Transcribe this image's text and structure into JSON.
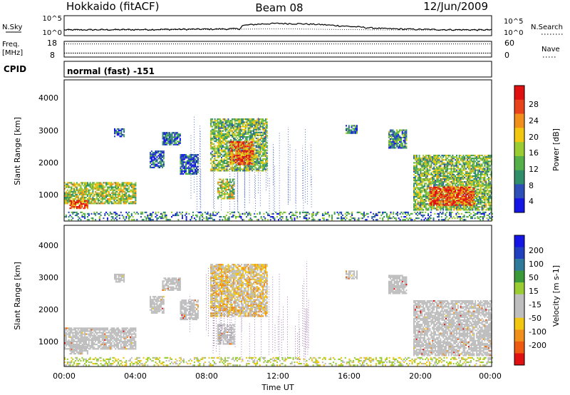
{
  "header": {
    "station": "Hokkaido (fitACF)",
    "beam": "Beam 08",
    "date": "12/Jun/2009"
  },
  "strip_labels": {
    "nsky": "N.Sky",
    "nsearch": "N.Search",
    "freq_line1": "Freq.",
    "freq_line2": "[MHz]",
    "nave": "Nave",
    "cpid": "CPID",
    "cpid_value": "normal (fast) -151"
  },
  "noise_axis": {
    "left_ticks": [
      "10^5",
      "10^0"
    ],
    "right_ticks": [
      "10^5",
      "10^0"
    ]
  },
  "freq_axis": {
    "left_ticks": [
      "18",
      "8"
    ],
    "right_ticks": [
      "60",
      "0"
    ]
  },
  "time_axis": {
    "label": "Time UT",
    "ticks": [
      "00:00",
      "04:00",
      "08:00",
      "12:00",
      "16:00",
      "20:00",
      "00:00"
    ]
  },
  "colors": {
    "power_scale": [
      "#1515e6",
      "#2e4fb8",
      "#2f8f6a",
      "#55b04a",
      "#9acd32",
      "#f2c70f",
      "#f0901a",
      "#e8431a",
      "#e01010"
    ],
    "velocity_scale": [
      "#e01010",
      "#ee5a10",
      "#f0901a",
      "#f2c70f",
      "#bebebe",
      "#bebebe",
      "#9acd32",
      "#3a9a3a",
      "#2e7a9a",
      "#2040c0",
      "#1515e6"
    ],
    "ground_scatter": "#bebebe"
  },
  "chart_data": [
    {
      "type": "line",
      "title": "N.Sky / N.Search",
      "ylabel_left": "N.Sky",
      "ylabel_right": "N.Search",
      "y_scale": "log",
      "ylim": [
        1,
        100000
      ],
      "x_hours": [
        0,
        2,
        4,
        6,
        7,
        8,
        9,
        9.9,
        10,
        11,
        12,
        13,
        14,
        15,
        16,
        17,
        18,
        20,
        22,
        24
      ],
      "series": [
        {
          "name": "N.Sky",
          "values": [
            18,
            20,
            22,
            26,
            28,
            30,
            34,
            40,
            300,
            900,
            1400,
            1200,
            800,
            400,
            180,
            80,
            40,
            25,
            20,
            18
          ]
        },
        {
          "name": "N.Search",
          "values": [
            16,
            17,
            18,
            20,
            22,
            24,
            26,
            28,
            30,
            34,
            36,
            34,
            30,
            26,
            22,
            20,
            18,
            17,
            16,
            16
          ]
        }
      ]
    },
    {
      "type": "line",
      "title": "Freq. / Nave",
      "ylabel_left": "Freq. [MHz]",
      "ylabel_right": "Nave",
      "ylim_left": [
        8,
        18
      ],
      "ylim_right": [
        0,
        60
      ],
      "series": [
        {
          "name": "Freq.",
          "x_hours": [
            0,
            24
          ],
          "values": [
            10.5,
            10.5
          ]
        },
        {
          "name": "Nave",
          "x_hours": [
            0,
            24
          ],
          "values": [
            50,
            50
          ]
        }
      ]
    },
    {
      "type": "heatmap",
      "title": "Power",
      "ylabel": "Slant Range [km]",
      "xlabel": "Time UT",
      "colorbar_label": "Power [dB]",
      "colorbar_ticks": [
        "28",
        "24",
        "20",
        "16",
        "12",
        "8",
        "4"
      ],
      "y_ticks": [
        "4000",
        "3000",
        "2000",
        "1000"
      ],
      "ylim": [
        180,
        4500
      ],
      "xlim_hours": [
        0,
        24
      ],
      "regions": [
        {
          "t0": 0.0,
          "t1": 4.0,
          "r0": 700,
          "r1": 1350,
          "p": 16
        },
        {
          "t0": 0.3,
          "t1": 1.3,
          "r0": 550,
          "r1": 800,
          "p": 26
        },
        {
          "t0": 2.8,
          "t1": 3.4,
          "r0": 2750,
          "r1": 3000,
          "p": 8
        },
        {
          "t0": 5.5,
          "t1": 6.5,
          "r0": 2500,
          "r1": 2900,
          "p": 7
        },
        {
          "t0": 4.8,
          "t1": 5.6,
          "r0": 1800,
          "r1": 2300,
          "p": 6
        },
        {
          "t0": 8.2,
          "t1": 11.4,
          "r0": 1700,
          "r1": 3300,
          "p": 14
        },
        {
          "t0": 9.3,
          "t1": 10.6,
          "r0": 1900,
          "r1": 2600,
          "p": 24
        },
        {
          "t0": 8.6,
          "t1": 9.5,
          "r0": 850,
          "r1": 1450,
          "p": 16
        },
        {
          "t0": 6.5,
          "t1": 7.5,
          "r0": 1600,
          "r1": 2200,
          "p": 6
        },
        {
          "t0": 15.8,
          "t1": 16.4,
          "r0": 2850,
          "r1": 3100,
          "p": 9
        },
        {
          "t0": 18.2,
          "t1": 19.2,
          "r0": 2400,
          "r1": 2950,
          "p": 11
        },
        {
          "t0": 19.6,
          "t1": 24.0,
          "r0": 500,
          "r1": 2200,
          "p": 14
        },
        {
          "t0": 20.5,
          "t1": 23.0,
          "r0": 650,
          "r1": 1200,
          "p": 26
        },
        {
          "t0": 0.0,
          "t1": 24.0,
          "r0": 200,
          "r1": 450,
          "p": 10
        }
      ]
    },
    {
      "type": "heatmap",
      "title": "Velocity",
      "ylabel": "Slant Range [km]",
      "xlabel": "Time UT",
      "colorbar_label": "Velocity [m s-1]",
      "colorbar_ticks": [
        "200",
        "100",
        "50",
        "15",
        "-15",
        "-50",
        "-100",
        "-200"
      ],
      "y_ticks": [
        "4000",
        "3000",
        "2000",
        "1000"
      ],
      "ylim": [
        180,
        4500
      ],
      "xlim_hours": [
        0,
        24
      ],
      "regions": [
        {
          "t0": 0.0,
          "t1": 4.0,
          "r0": 700,
          "r1": 1350,
          "v": 0
        },
        {
          "t0": 0.3,
          "t1": 1.3,
          "r0": 550,
          "r1": 800,
          "v": 0
        },
        {
          "t0": 2.8,
          "t1": 3.4,
          "r0": 2750,
          "r1": 3000,
          "v": 0
        },
        {
          "t0": 5.5,
          "t1": 6.5,
          "r0": 2500,
          "r1": 2900,
          "v": 0
        },
        {
          "t0": 4.8,
          "t1": 5.6,
          "r0": 1800,
          "r1": 2300,
          "v": 0
        },
        {
          "t0": 8.2,
          "t1": 11.4,
          "r0": 1700,
          "r1": 3300,
          "v": -40
        },
        {
          "t0": 8.6,
          "t1": 9.5,
          "r0": 850,
          "r1": 1450,
          "v": 0
        },
        {
          "t0": 6.5,
          "t1": 7.5,
          "r0": 1600,
          "r1": 2200,
          "v": 0
        },
        {
          "t0": 15.8,
          "t1": 16.4,
          "r0": 2850,
          "r1": 3100,
          "v": 0
        },
        {
          "t0": 18.2,
          "t1": 19.2,
          "r0": 2400,
          "r1": 2950,
          "v": 0
        },
        {
          "t0": 19.6,
          "t1": 24.0,
          "r0": 500,
          "r1": 2200,
          "v": 0
        },
        {
          "t0": 0.0,
          "t1": 24.0,
          "r0": 200,
          "r1": 450,
          "v": 40
        }
      ]
    }
  ]
}
